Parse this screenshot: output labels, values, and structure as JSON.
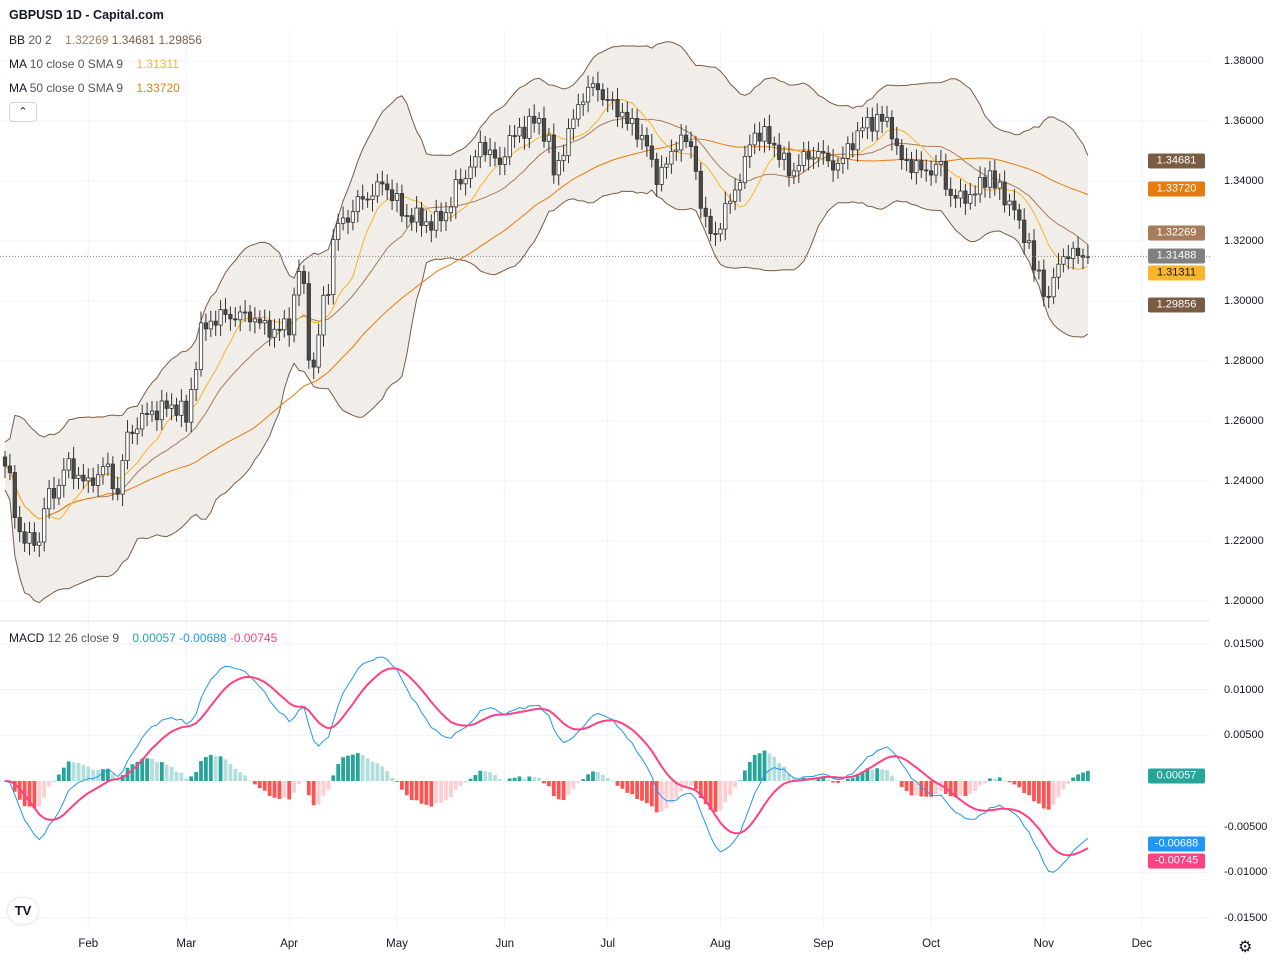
{
  "header": {
    "title": "GBPUSD 1D - Capital.com"
  },
  "legend": {
    "bb": {
      "label": "BB",
      "params": "20 2",
      "basis": "1.32269",
      "upper": "1.34681",
      "lower": "1.29856"
    },
    "ma10": {
      "label": "MA",
      "params": "10 close 0 SMA 9",
      "value": "1.31311"
    },
    "ma50": {
      "label": "MA",
      "params": "50 close 0 SMA 9",
      "value": "1.33720"
    },
    "macd": {
      "label": "MACD",
      "params": "12 26 close 9",
      "hist": "0.00057",
      "macd": "-0.00688",
      "signal": "-0.00745"
    },
    "collapse_icon": "chevron-up-icon"
  },
  "colors": {
    "up_body": "#ffffff",
    "down_body": "#4a4a4a",
    "candle_border": "#333333",
    "bb_basis": "#a87b5a",
    "bb_band": "#7a5c45",
    "bb_fill": "#f1ede9",
    "ma10": "#f7b52c",
    "ma50": "#e67c0e",
    "macd": "#2196f3",
    "signal": "#ff4081",
    "hist_up_strong": "#26a69a",
    "hist_up_weak": "#b2dfdb",
    "hist_down_strong": "#ff5252",
    "hist_down_weak": "#ffcdd2",
    "last_price": "#808080"
  },
  "price_axis": {
    "ticks": [
      "1.38000",
      "1.36000",
      "1.34000",
      "1.32000",
      "1.30000",
      "1.28000",
      "1.26000",
      "1.24000",
      "1.22000",
      "1.20000"
    ],
    "badges": [
      {
        "value": "1.34681",
        "color": "#7a5c45",
        "text": "#ffffff"
      },
      {
        "value": "1.33720",
        "color": "#e67c0e",
        "text": "#ffffff"
      },
      {
        "value": "1.32269",
        "color": "#a87b5a",
        "text": "#ffffff"
      },
      {
        "value": "1.31488",
        "color": "#808080",
        "text": "#ffffff"
      },
      {
        "value": "1.31311",
        "color": "#f7b52c",
        "text": "#131722"
      },
      {
        "value": "1.29856",
        "color": "#7a5c45",
        "text": "#ffffff"
      }
    ]
  },
  "macd_axis": {
    "ticks": [
      "0.01500",
      "0.01000",
      "0.00500",
      "-0.00500",
      "-0.01000",
      "-0.01500"
    ],
    "badges": [
      {
        "value": "0.00057",
        "color": "#26a69a",
        "text": "#ffffff"
      },
      {
        "value": "-0.00688",
        "color": "#2196f3",
        "text": "#ffffff"
      },
      {
        "value": "-0.00745",
        "color": "#ff4081",
        "text": "#ffffff"
      }
    ]
  },
  "time_axis": {
    "labels": [
      {
        "label": "Feb",
        "date": "2025-02-03"
      },
      {
        "label": "Mar",
        "date": "2025-03-03"
      },
      {
        "label": "Apr",
        "date": "2025-04-01"
      },
      {
        "label": "May",
        "date": "2025-05-01"
      },
      {
        "label": "Jun",
        "date": "2025-06-02"
      },
      {
        "label": "Jul",
        "date": "2025-07-01"
      },
      {
        "label": "Aug",
        "date": "2025-08-01"
      },
      {
        "label": "Sep",
        "date": "2025-09-01"
      },
      {
        "label": "Oct",
        "date": "2025-10-01"
      },
      {
        "label": "Nov",
        "date": "2025-11-03"
      },
      {
        "label": "Dec",
        "date": "2025-12-01"
      }
    ]
  },
  "logo_text": "TV",
  "settings_icon": "gear-icon",
  "chart_data": {
    "type": "candlestick",
    "symbol": "GBPUSD",
    "interval": "1D",
    "ylim": [
      1.2,
      1.38
    ],
    "macd_ylim": [
      -0.015,
      0.015
    ],
    "last_price": 1.31488,
    "grid": true,
    "close_path": [
      {
        "date": "2025-01-09",
        "close": 1.245
      },
      {
        "date": "2025-01-15",
        "close": 1.22
      },
      {
        "date": "2025-01-20",
        "close": 1.22
      },
      {
        "date": "2025-01-21",
        "close": 1.232
      },
      {
        "date": "2025-01-27",
        "close": 1.245
      },
      {
        "date": "2025-02-03",
        "close": 1.238
      },
      {
        "date": "2025-02-06",
        "close": 1.245
      },
      {
        "date": "2025-02-11",
        "close": 1.237
      },
      {
        "date": "2025-02-13",
        "close": 1.255
      },
      {
        "date": "2025-02-20",
        "close": 1.263
      },
      {
        "date": "2025-02-27",
        "close": 1.265
      },
      {
        "date": "2025-03-03",
        "close": 1.26
      },
      {
        "date": "2025-03-06",
        "close": 1.29
      },
      {
        "date": "2025-03-12",
        "close": 1.295
      },
      {
        "date": "2025-03-20",
        "close": 1.295
      },
      {
        "date": "2025-03-27",
        "close": 1.29
      },
      {
        "date": "2025-04-01",
        "close": 1.292
      },
      {
        "date": "2025-04-03",
        "close": 1.31
      },
      {
        "date": "2025-04-08",
        "close": 1.277
      },
      {
        "date": "2025-04-10",
        "close": 1.3
      },
      {
        "date": "2025-04-15",
        "close": 1.325
      },
      {
        "date": "2025-04-18",
        "close": 1.33
      },
      {
        "date": "2025-04-28",
        "close": 1.34
      },
      {
        "date": "2025-05-02",
        "close": 1.33
      },
      {
        "date": "2025-05-12",
        "close": 1.325
      },
      {
        "date": "2025-05-15",
        "close": 1.33
      },
      {
        "date": "2025-05-20",
        "close": 1.34
      },
      {
        "date": "2025-05-26",
        "close": 1.353
      },
      {
        "date": "2025-05-30",
        "close": 1.345
      },
      {
        "date": "2025-06-05",
        "close": 1.357
      },
      {
        "date": "2025-06-11",
        "close": 1.36
      },
      {
        "date": "2025-06-16",
        "close": 1.342
      },
      {
        "date": "2025-06-20",
        "close": 1.36
      },
      {
        "date": "2025-06-25",
        "close": 1.37
      },
      {
        "date": "2025-06-27",
        "close": 1.372
      },
      {
        "date": "2025-07-02",
        "close": 1.365
      },
      {
        "date": "2025-07-09",
        "close": 1.357
      },
      {
        "date": "2025-07-15",
        "close": 1.342
      },
      {
        "date": "2025-07-22",
        "close": 1.355
      },
      {
        "date": "2025-07-24",
        "close": 1.35
      },
      {
        "date": "2025-07-30",
        "close": 1.322
      },
      {
        "date": "2025-08-04",
        "close": 1.33
      },
      {
        "date": "2025-08-08",
        "close": 1.345
      },
      {
        "date": "2025-08-12",
        "close": 1.356
      },
      {
        "date": "2025-08-18",
        "close": 1.352
      },
      {
        "date": "2025-08-21",
        "close": 1.343
      },
      {
        "date": "2025-08-27",
        "close": 1.348
      },
      {
        "date": "2025-08-29",
        "close": 1.35
      },
      {
        "date": "2025-09-04",
        "close": 1.345
      },
      {
        "date": "2025-09-10",
        "close": 1.355
      },
      {
        "date": "2025-09-12",
        "close": 1.36
      },
      {
        "date": "2025-09-18",
        "close": 1.36
      },
      {
        "date": "2025-09-23",
        "close": 1.347
      },
      {
        "date": "2025-09-29",
        "close": 1.343
      },
      {
        "date": "2025-10-03",
        "close": 1.345
      },
      {
        "date": "2025-10-08",
        "close": 1.334
      },
      {
        "date": "2025-10-14",
        "close": 1.336
      },
      {
        "date": "2025-10-17",
        "close": 1.343
      },
      {
        "date": "2025-10-22",
        "close": 1.335
      },
      {
        "date": "2025-10-29",
        "close": 1.32
      },
      {
        "date": "2025-10-30",
        "close": 1.31
      },
      {
        "date": "2025-11-04",
        "close": 1.302
      },
      {
        "date": "2025-11-07",
        "close": 1.316
      },
      {
        "date": "2025-11-14",
        "close": 1.31488
      }
    ],
    "indicators": [
      "BB 20 2",
      "MA 10",
      "MA 50",
      "MACD 12 26 9"
    ]
  }
}
